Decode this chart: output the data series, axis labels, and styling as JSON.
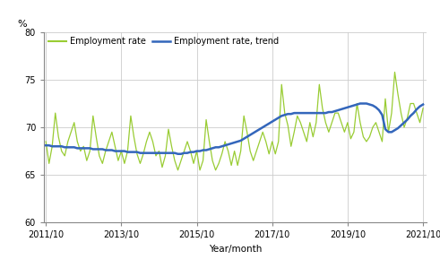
{
  "ylabel": "%",
  "xlabel": "Year/month",
  "legend_labels": [
    "Employment rate",
    "Employment rate, trend"
  ],
  "line_color_rate": "#99cc33",
  "line_color_trend": "#3366bb",
  "ylim": [
    60,
    80
  ],
  "yticks": [
    60,
    65,
    70,
    75,
    80
  ],
  "xtick_labels": [
    "2011/10",
    "2013/10",
    "2015/10",
    "2017/10",
    "2019/10",
    "2021/10"
  ],
  "background_color": "#ffffff",
  "grid_color": "#cccccc",
  "employment_rate": [
    68.5,
    66.2,
    68.0,
    71.5,
    69.0,
    67.5,
    67.0,
    68.5,
    69.5,
    70.5,
    68.5,
    67.5,
    68.0,
    66.5,
    67.5,
    71.2,
    69.0,
    67.0,
    66.2,
    67.5,
    68.5,
    69.5,
    68.0,
    66.5,
    67.5,
    66.2,
    67.5,
    71.2,
    69.0,
    67.2,
    66.2,
    67.2,
    68.5,
    69.5,
    68.5,
    67.0,
    67.5,
    65.8,
    67.0,
    69.8,
    68.0,
    66.5,
    65.5,
    66.5,
    67.5,
    68.5,
    67.5,
    66.2,
    67.5,
    65.5,
    66.5,
    70.8,
    68.5,
    66.5,
    65.5,
    66.2,
    67.2,
    68.5,
    67.5,
    66.0,
    67.5,
    66.0,
    67.5,
    71.2,
    69.5,
    67.5,
    66.5,
    67.5,
    68.5,
    69.5,
    68.5,
    67.2,
    68.5,
    67.2,
    68.5,
    74.5,
    71.5,
    70.2,
    68.0,
    69.5,
    71.2,
    70.5,
    69.5,
    68.5,
    70.5,
    69.0,
    70.5,
    74.5,
    72.0,
    70.5,
    69.5,
    70.5,
    71.5,
    71.5,
    70.5,
    69.5,
    70.5,
    68.8,
    69.5,
    72.5,
    70.5,
    69.0,
    68.5,
    69.0,
    70.0,
    70.5,
    69.5,
    68.5,
    73.0,
    69.5,
    71.5,
    75.8,
    73.5,
    71.5,
    70.0,
    71.0,
    72.5,
    72.5,
    71.5,
    70.5,
    72.0
  ],
  "trend": [
    68.1,
    68.1,
    68.0,
    68.0,
    68.0,
    68.0,
    67.9,
    67.9,
    67.9,
    67.9,
    67.8,
    67.8,
    67.8,
    67.8,
    67.8,
    67.7,
    67.7,
    67.7,
    67.7,
    67.6,
    67.6,
    67.6,
    67.5,
    67.5,
    67.5,
    67.5,
    67.4,
    67.4,
    67.4,
    67.4,
    67.3,
    67.3,
    67.3,
    67.3,
    67.3,
    67.3,
    67.3,
    67.3,
    67.3,
    67.3,
    67.3,
    67.3,
    67.2,
    67.2,
    67.3,
    67.3,
    67.4,
    67.4,
    67.5,
    67.5,
    67.6,
    67.6,
    67.7,
    67.8,
    67.9,
    67.9,
    68.0,
    68.1,
    68.2,
    68.3,
    68.4,
    68.5,
    68.6,
    68.8,
    69.0,
    69.2,
    69.4,
    69.6,
    69.8,
    70.0,
    70.2,
    70.4,
    70.6,
    70.8,
    71.0,
    71.2,
    71.3,
    71.4,
    71.4,
    71.5,
    71.5,
    71.5,
    71.5,
    71.5,
    71.5,
    71.5,
    71.5,
    71.5,
    71.5,
    71.5,
    71.6,
    71.6,
    71.7,
    71.8,
    71.9,
    72.0,
    72.1,
    72.2,
    72.3,
    72.4,
    72.5,
    72.5,
    72.5,
    72.4,
    72.3,
    72.1,
    71.8,
    71.3,
    69.8,
    69.5,
    69.5,
    69.7,
    69.9,
    70.2,
    70.5,
    70.8,
    71.2,
    71.5,
    71.9,
    72.2,
    72.4
  ]
}
